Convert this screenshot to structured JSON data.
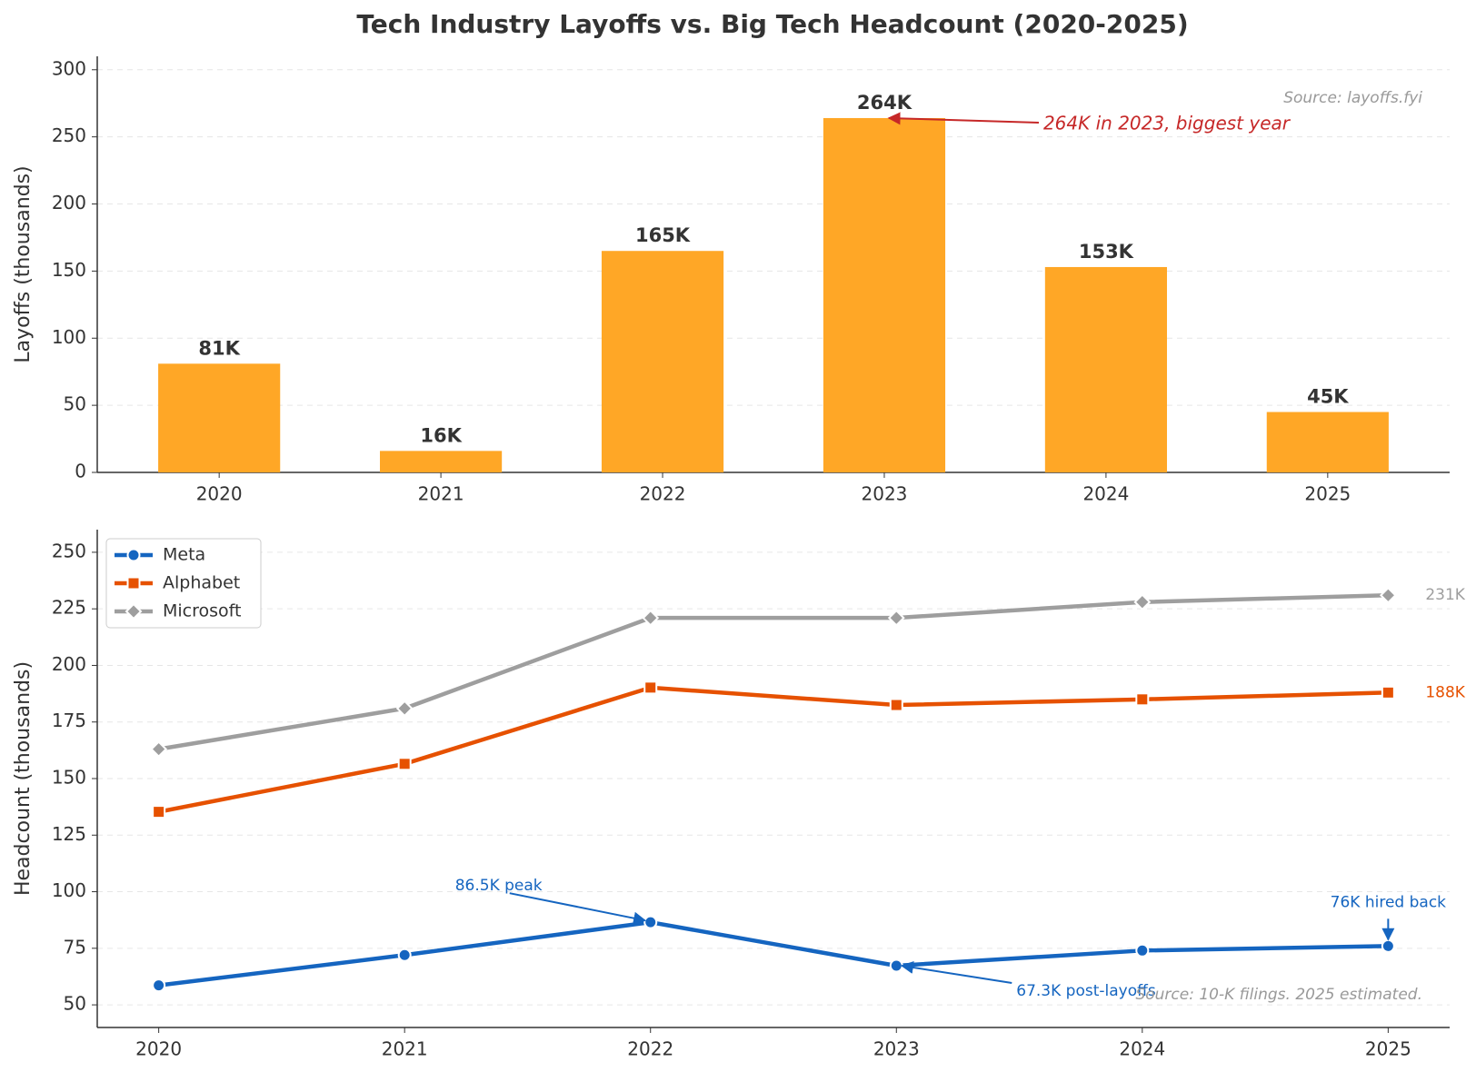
{
  "title": "Tech Industry Layoffs vs. Big Tech Headcount (2020-2025)",
  "chart_data": [
    {
      "type": "bar",
      "ylabel": "Layoffs (thousands)",
      "categories": [
        "2020",
        "2021",
        "2022",
        "2023",
        "2024",
        "2025"
      ],
      "values": [
        81,
        16,
        165,
        264,
        153,
        45
      ],
      "value_labels": [
        "81K",
        "16K",
        "165K",
        "264K",
        "153K",
        "45K"
      ],
      "color": "#ffa726",
      "ylim": [
        0,
        310
      ],
      "yticks": [
        0,
        50,
        100,
        150,
        200,
        250,
        300
      ],
      "grid": true,
      "annotations": [
        "264K in 2023, biggest year"
      ],
      "source": "Source: layoffs.fyi"
    },
    {
      "type": "line",
      "ylabel": "Headcount (thousands)",
      "x": [
        2020,
        2021,
        2022,
        2023,
        2024,
        2025
      ],
      "xlim": [
        2019.75,
        2025.25
      ],
      "xticks": [
        2020,
        2021,
        2022,
        2023,
        2024,
        2025
      ],
      "ylim": [
        40,
        260
      ],
      "yticks": [
        50,
        75,
        100,
        125,
        150,
        175,
        200,
        225,
        250
      ],
      "grid": true,
      "legend": "upper left",
      "series": [
        {
          "name": "Meta",
          "color": "#1565c0",
          "marker": "circle",
          "values": [
            58.6,
            72,
            86.5,
            67.3,
            74,
            76
          ]
        },
        {
          "name": "Alphabet",
          "color": "#e65100",
          "marker": "square",
          "values": [
            135.3,
            156.5,
            190.2,
            182.5,
            185,
            188
          ],
          "end_label": "188K"
        },
        {
          "name": "Microsoft",
          "color": "#9e9e9e",
          "marker": "diamond",
          "values": [
            163,
            181,
            221,
            221,
            228,
            231
          ],
          "end_label": "231K"
        }
      ],
      "annotations": [
        "86.5K peak",
        "67.3K post-layoffs",
        "76K hired back"
      ],
      "source": "Source: 10-K filings. 2025 estimated."
    }
  ]
}
